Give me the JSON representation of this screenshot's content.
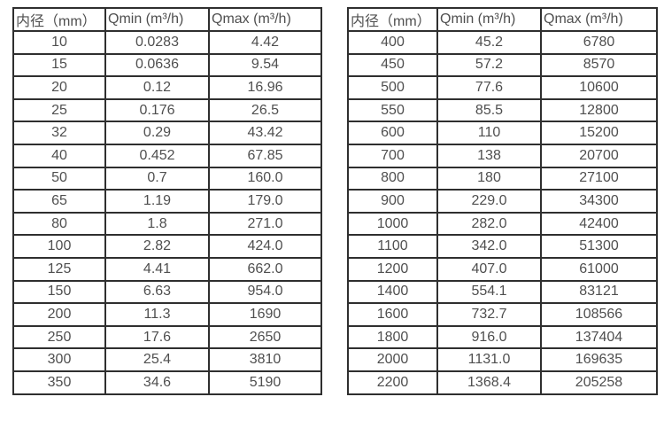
{
  "page": {
    "background_color": "#ffffff",
    "text_color": "#4f4f4f",
    "border_color": "#2f2f2f"
  },
  "tables": [
    {
      "name": "small-diameters",
      "headers": [
        "内径（mm）",
        "Qmin (m³/h)",
        "Qmax (m³/h)"
      ],
      "rows": [
        [
          "10",
          "0.0283",
          "4.42"
        ],
        [
          "15",
          "0.0636",
          "9.54"
        ],
        [
          "20",
          "0.12",
          "16.96"
        ],
        [
          "25",
          "0.176",
          "26.5"
        ],
        [
          "32",
          "0.29",
          "43.42"
        ],
        [
          "40",
          "0.452",
          "67.85"
        ],
        [
          "50",
          "0.7",
          "160.0"
        ],
        [
          "65",
          "1.19",
          "179.0"
        ],
        [
          "80",
          "1.8",
          "271.0"
        ],
        [
          "100",
          "2.82",
          "424.0"
        ],
        [
          "125",
          "4.41",
          "662.0"
        ],
        [
          "150",
          "6.63",
          "954.0"
        ],
        [
          "200",
          "11.3",
          "1690"
        ],
        [
          "250",
          "17.6",
          "2650"
        ],
        [
          "300",
          "25.4",
          "3810"
        ],
        [
          "350",
          "34.6",
          "5190"
        ]
      ]
    },
    {
      "name": "large-diameters",
      "headers": [
        "内径（mm）",
        "Qmin (m³/h)",
        "Qmax (m³/h)"
      ],
      "rows": [
        [
          "400",
          "45.2",
          "6780"
        ],
        [
          "450",
          "57.2",
          "8570"
        ],
        [
          "500",
          "77.6",
          "10600"
        ],
        [
          "550",
          "85.5",
          "12800"
        ],
        [
          "600",
          "110",
          "15200"
        ],
        [
          "700",
          "138",
          "20700"
        ],
        [
          "800",
          "180",
          "27100"
        ],
        [
          "900",
          "229.0",
          "34300"
        ],
        [
          "1000",
          "282.0",
          "42400"
        ],
        [
          "1100",
          "342.0",
          "51300"
        ],
        [
          "1200",
          "407.0",
          "61000"
        ],
        [
          "1400",
          "554.1",
          "83121"
        ],
        [
          "1600",
          "732.7",
          "108566"
        ],
        [
          "1800",
          "916.0",
          "137404"
        ],
        [
          "2000",
          "1131.0",
          "169635"
        ],
        [
          "2200",
          "1368.4",
          "205258"
        ]
      ]
    }
  ]
}
